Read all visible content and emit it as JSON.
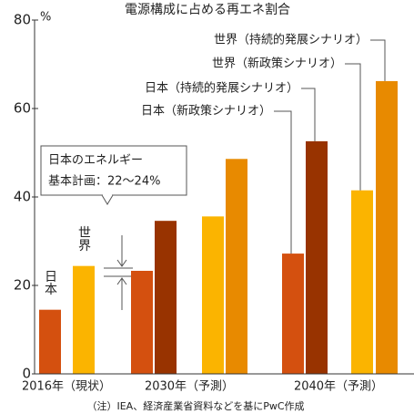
{
  "chart_data": {
    "type": "bar",
    "title": "電源構成に占める再エネ割合",
    "y_label": "%",
    "categories": [
      "2016年（現状）",
      "2030年（予測）",
      "2040年（予測）"
    ],
    "series": [
      {
        "name": "日本（新政策シナリオ）",
        "color": "#d4500f",
        "values": [
          14.5,
          23.3,
          27.2
        ]
      },
      {
        "name": "日本（持続的発展シナリオ）",
        "color": "#983300",
        "values": [
          null,
          34.6,
          52.6
        ]
      },
      {
        "name": "世界（新政策シナリオ）",
        "color": "#fbb400",
        "values": [
          24.4,
          35.6,
          41.5
        ]
      },
      {
        "name": "世界（持続的発展シナリオ）",
        "color": "#e88a00",
        "values": [
          null,
          48.6,
          66.2
        ]
      }
    ],
    "bar_labels_2016": [
      "日本",
      "世界"
    ],
    "annotation": [
      "日本のエネルギー",
      "基本計画：22～24%"
    ],
    "note": "（注）IEA、経済産業省資料などを基にPwC作成",
    "ylim": [
      0,
      80
    ],
    "yticks": [
      0,
      20,
      40,
      60,
      80
    ],
    "grid": false
  }
}
